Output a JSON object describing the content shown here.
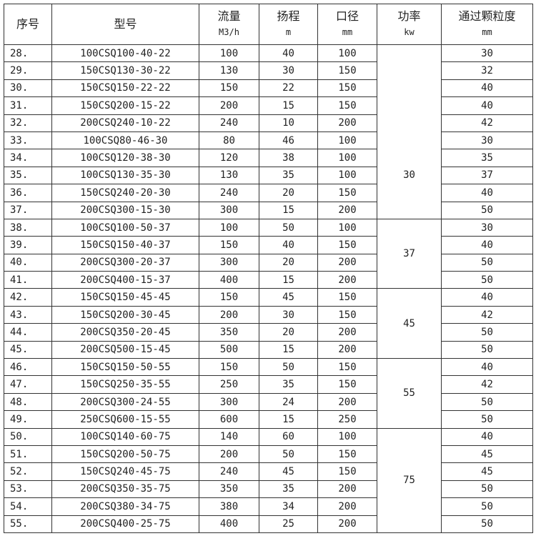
{
  "headers": [
    {
      "label": "序号",
      "unit": ""
    },
    {
      "label": "型号",
      "unit": ""
    },
    {
      "label": "流量",
      "unit": "M3/h"
    },
    {
      "label": "扬程",
      "unit": "m"
    },
    {
      "label": "口径",
      "unit": "mm"
    },
    {
      "label": "功率",
      "unit": "kw"
    },
    {
      "label": "通过颗粒度",
      "unit": "mm"
    }
  ],
  "rows": [
    [
      "28.",
      "100CSQ100-40-22",
      "100",
      "40",
      "100",
      "30"
    ],
    [
      "29.",
      "150CSQ130-30-22",
      "130",
      "30",
      "150",
      "32"
    ],
    [
      "30.",
      "150CSQ150-22-22",
      "150",
      "22",
      "150",
      "40"
    ],
    [
      "31.",
      "150CSQ200-15-22",
      "200",
      "15",
      "150",
      "40"
    ],
    [
      "32.",
      "200CSQ240-10-22",
      "240",
      "10",
      "200",
      "42"
    ],
    [
      "33.",
      "100CSQ80-46-30",
      "80",
      "46",
      "100",
      "30"
    ],
    [
      "34.",
      "100CSQ120-38-30",
      "120",
      "38",
      "100",
      "35"
    ],
    [
      "35.",
      "100CSQ130-35-30",
      "130",
      "35",
      "100",
      "37"
    ],
    [
      "36.",
      "150CSQ240-20-30",
      "240",
      "20",
      "150",
      "40"
    ],
    [
      "37.",
      "200CSQ300-15-30",
      "300",
      "15",
      "200",
      "50"
    ],
    [
      "38.",
      "100CSQ100-50-37",
      "100",
      "50",
      "100",
      "30"
    ],
    [
      "39.",
      "150CSQ150-40-37",
      "150",
      "40",
      "150",
      "40"
    ],
    [
      "40.",
      "200CSQ300-20-37",
      "300",
      "20",
      "200",
      "50"
    ],
    [
      "41.",
      "200CSQ400-15-37",
      "400",
      "15",
      "200",
      "50"
    ],
    [
      "42.",
      "150CSQ150-45-45",
      "150",
      "45",
      "150",
      "40"
    ],
    [
      "43.",
      "150CSQ200-30-45",
      "200",
      "30",
      "150",
      "42"
    ],
    [
      "44.",
      "200CSQ350-20-45",
      "350",
      "20",
      "200",
      "50"
    ],
    [
      "45.",
      "200CSQ500-15-45",
      "500",
      "15",
      "200",
      "50"
    ],
    [
      "46.",
      "150CSQ150-50-55",
      "150",
      "50",
      "150",
      "40"
    ],
    [
      "47.",
      "150CSQ250-35-55",
      "250",
      "35",
      "150",
      "42"
    ],
    [
      "48.",
      "200CSQ300-24-55",
      "300",
      "24",
      "200",
      "50"
    ],
    [
      "49.",
      "250CSQ600-15-55",
      "600",
      "15",
      "250",
      "50"
    ],
    [
      "50.",
      "100CSQ140-60-75",
      "140",
      "60",
      "100",
      "40"
    ],
    [
      "51.",
      "150CSQ200-50-75",
      "200",
      "50",
      "150",
      "45"
    ],
    [
      "52.",
      "150CSQ240-45-75",
      "240",
      "45",
      "150",
      "45"
    ],
    [
      "53.",
      "200CSQ350-35-75",
      "350",
      "35",
      "200",
      "50"
    ],
    [
      "54.",
      "200CSQ380-34-75",
      "380",
      "34",
      "200",
      "50"
    ],
    [
      "55.",
      "200CSQ400-25-75",
      "400",
      "25",
      "200",
      "50"
    ]
  ],
  "power_groups": [
    {
      "value": "",
      "start": 0,
      "span": 5,
      "style": "open-bottom"
    },
    {
      "value": "30",
      "start": 5,
      "span": 5,
      "style": "open-top"
    },
    {
      "value": "37",
      "start": 10,
      "span": 4
    },
    {
      "value": "45",
      "start": 14,
      "span": 4
    },
    {
      "value": "55",
      "start": 18,
      "span": 4
    },
    {
      "value": "75",
      "start": 22,
      "span": 6
    }
  ]
}
